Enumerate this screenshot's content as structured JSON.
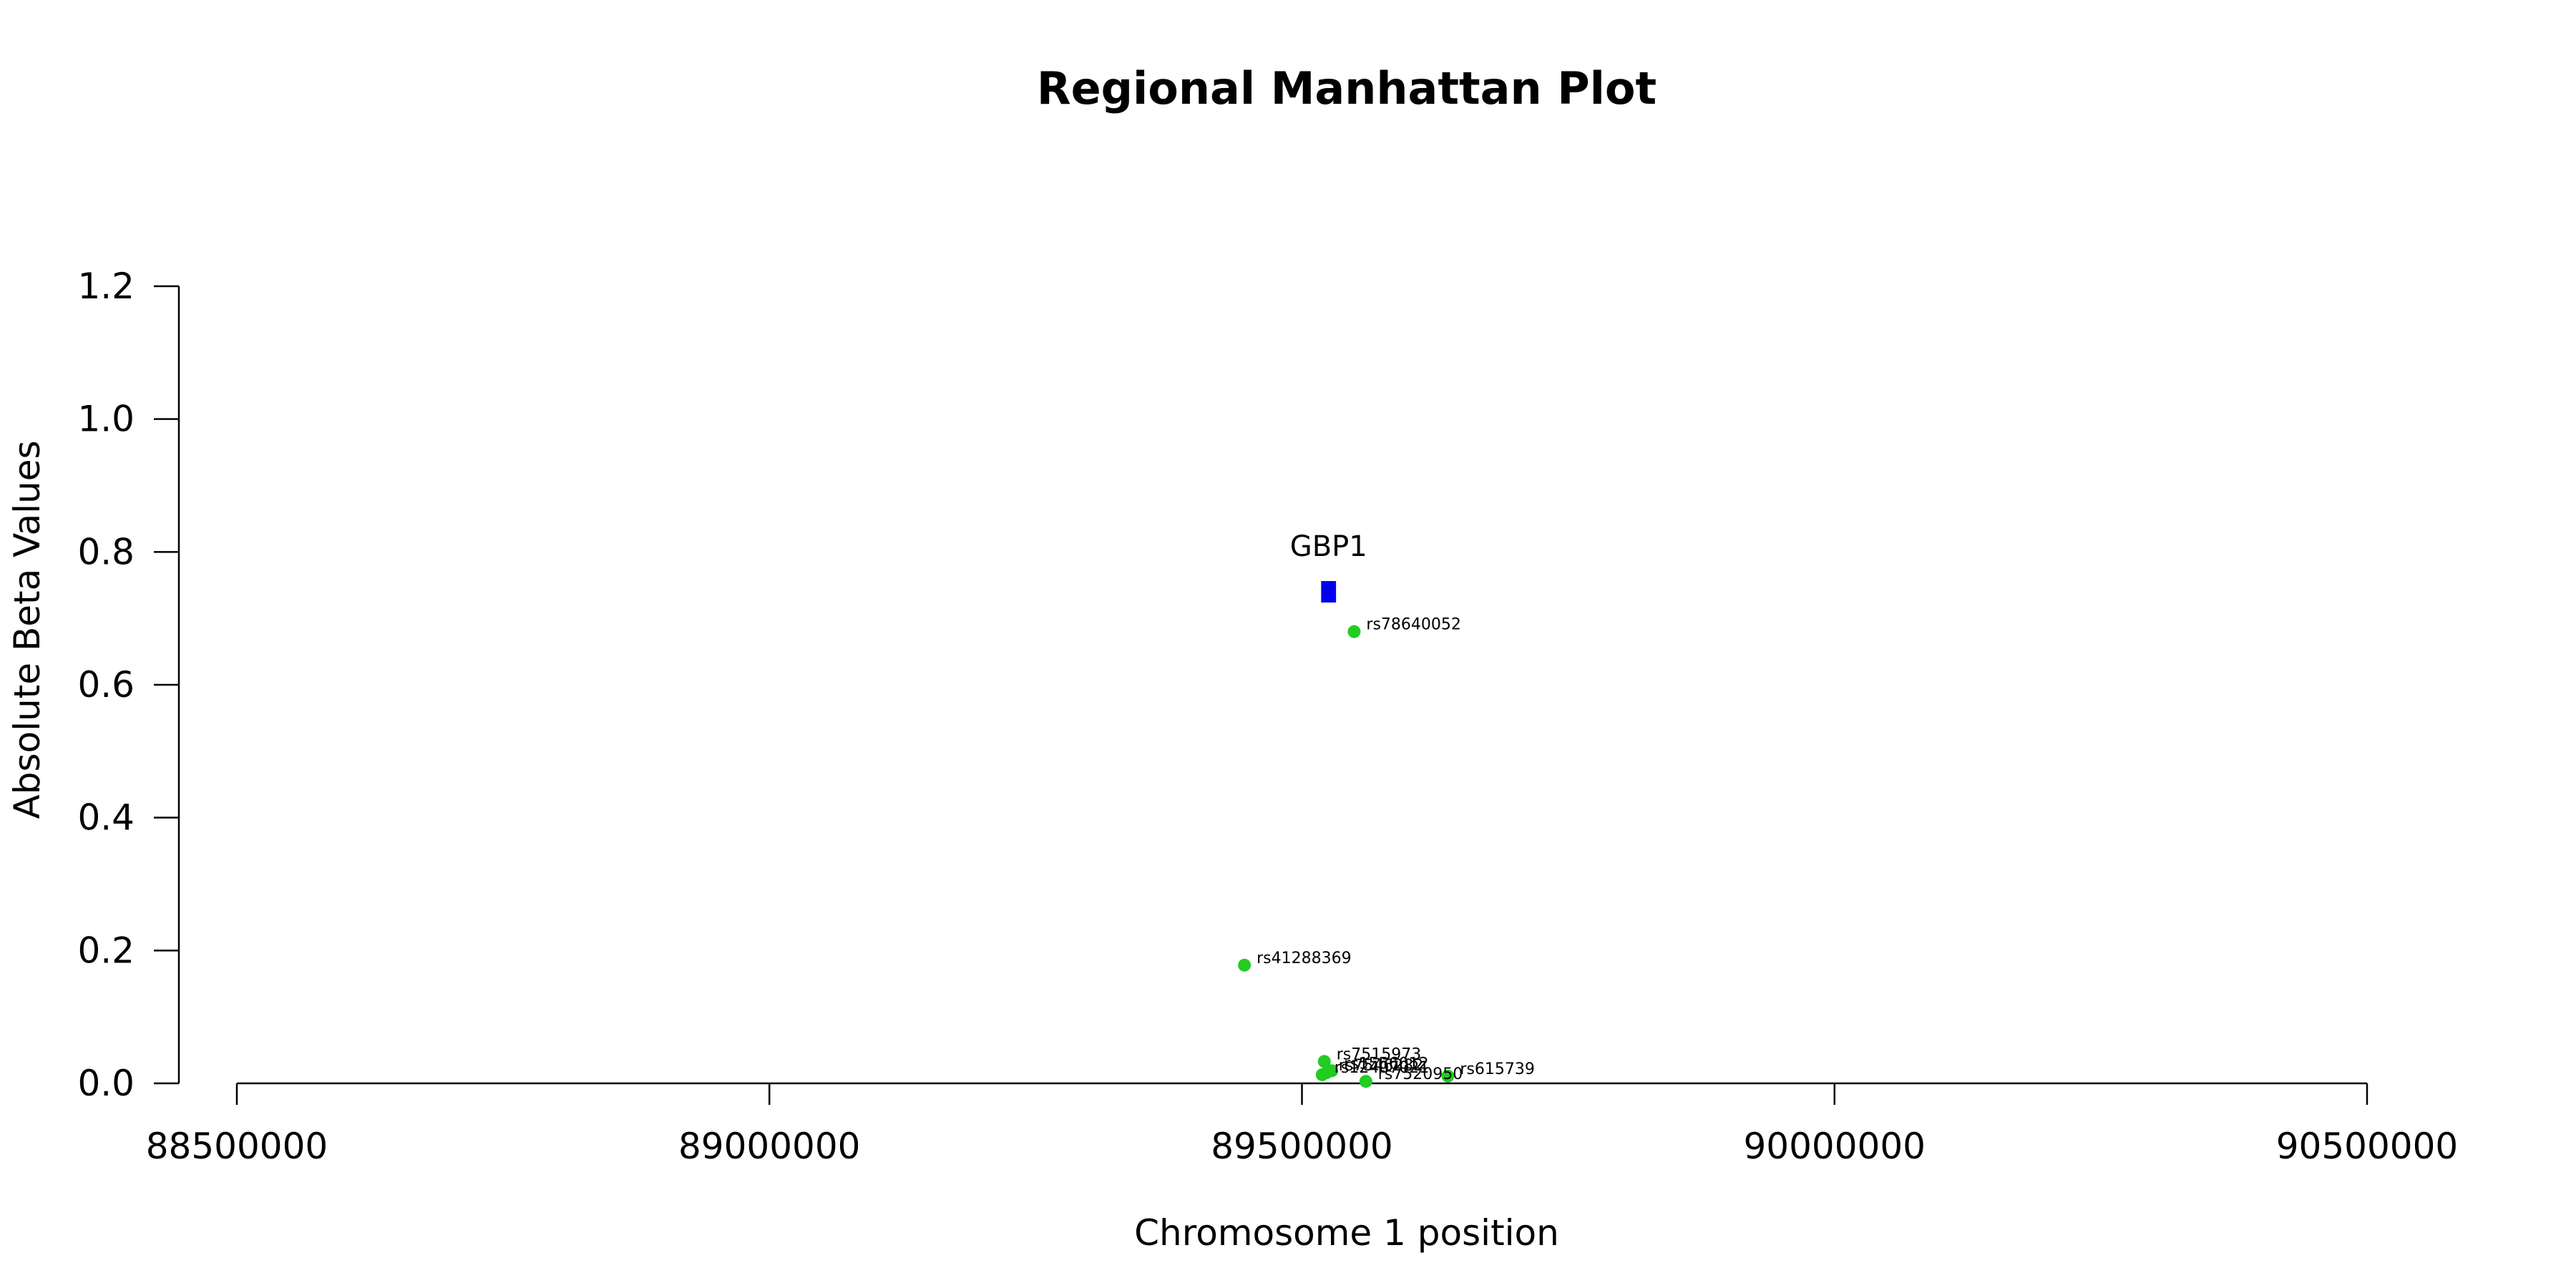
{
  "chart_data": {
    "type": "scatter",
    "title": "Regional Manhattan Plot",
    "xlabel": "Chromosome 1 position",
    "ylabel": "Absolute Beta Values",
    "xlim": [
      88500000,
      90500000
    ],
    "ylim": [
      0,
      1.2
    ],
    "x_ticks": [
      88500000,
      89000000,
      89500000,
      90000000,
      90500000
    ],
    "y_ticks": [
      "0.0",
      "0.2",
      "0.4",
      "0.6",
      "0.8",
      "1.0",
      "1.2"
    ],
    "point_color": "#22cc22",
    "gene_color": "#0000ee",
    "points": [
      {
        "label": "rs78640052",
        "x": 89549000,
        "y": 0.68
      },
      {
        "label": "rs41288369",
        "x": 89446000,
        "y": 0.178
      },
      {
        "label": "rs7515973",
        "x": 89521000,
        "y": 0.033
      },
      {
        "label": "rs1556012",
        "x": 89528000,
        "y": 0.019
      },
      {
        "label": "rs7546282",
        "x": 89523000,
        "y": 0.016
      },
      {
        "label": "rs12407021",
        "x": 89519000,
        "y": 0.013
      },
      {
        "label": "rs615739",
        "x": 89637000,
        "y": 0.011
      },
      {
        "label": "rs7520950",
        "x": 89560000,
        "y": 0.003
      }
    ],
    "genes": [
      {
        "name": "GBP1",
        "start": 89518000,
        "end": 89532000,
        "y": 0.74
      }
    ]
  }
}
